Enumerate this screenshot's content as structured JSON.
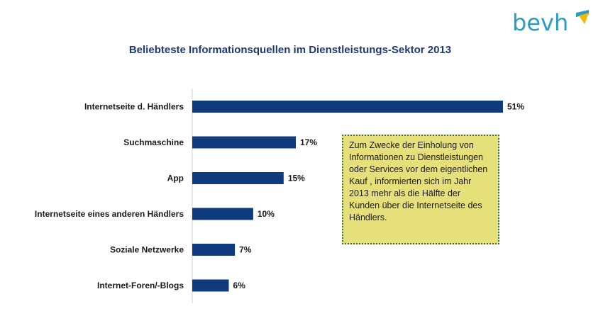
{
  "logo": {
    "text": "bevh",
    "brand_color": "#2a9bc4",
    "accent_color": "#f2b800"
  },
  "chart_data": {
    "type": "bar",
    "orientation": "horizontal",
    "title": "Beliebteste Informationsquellen im Dienstleistungs-Sektor 2013",
    "categories": [
      "Internetseite d. Händlers",
      "Suchmaschine",
      "App",
      "Internetseite eines anderen Händlers",
      "Soziale Netzwerke",
      "Internet-Foren/-Blogs"
    ],
    "values": [
      51,
      17,
      15,
      10,
      7,
      6
    ],
    "value_labels": [
      "51%",
      "17%",
      "15%",
      "10%",
      "7%",
      "6%"
    ],
    "unit": "%",
    "xlim": [
      0,
      51
    ],
    "bar_color": "#0f3a7d",
    "grid": false,
    "legend": "none"
  },
  "note": {
    "text": "Zum Zwecke der Einholung von Informationen zu Dienstleistungen oder Services vor dem eigentlichen Kauf , informierten sich im Jahr 2013 mehr als die Hälfte der Kunden über die Internetseite des Händlers.",
    "background": "#e6e07b"
  }
}
